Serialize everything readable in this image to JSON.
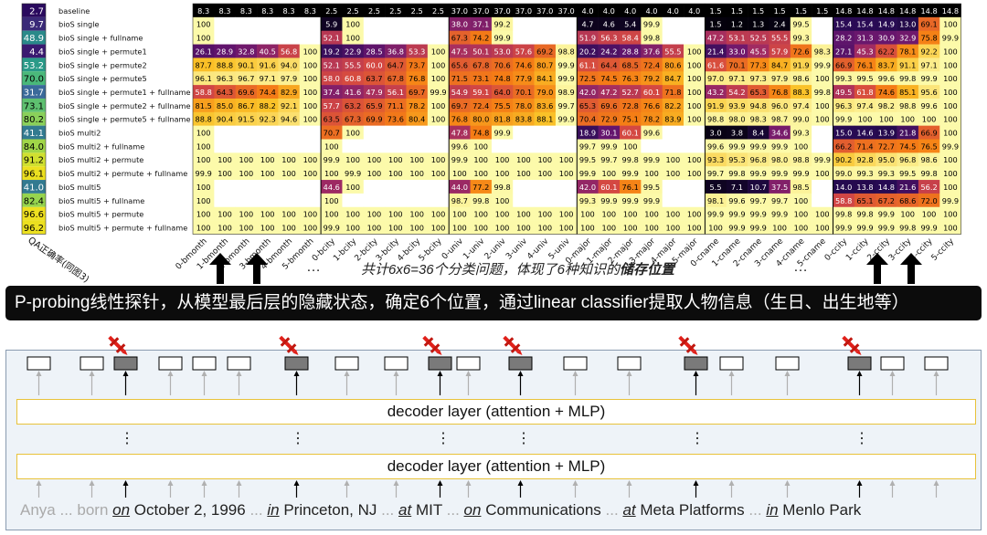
{
  "heatmap": {
    "y_axis_label": "QA正确率(同图3)",
    "rows": [
      {
        "label": "baseline",
        "qa": "2.7",
        "qa_color": "#2a0a5e"
      },
      {
        "label": "bioS single",
        "qa": "9.7",
        "qa_color": "#3a2a78"
      },
      {
        "label": "bioS single          + fullname",
        "qa": "48.9",
        "qa_color": "#2a8a8a"
      },
      {
        "label": "bioS single + permute1",
        "qa": "4.4",
        "qa_color": "#3a1a70"
      },
      {
        "label": "bioS single + permute2",
        "qa": "53.2",
        "qa_color": "#2a9a88"
      },
      {
        "label": "bioS single + permute5",
        "qa": "70.0",
        "qa_color": "#4ab87a"
      },
      {
        "label": "bioS single + permute1 + fullname",
        "qa": "31.7",
        "qa_color": "#3a6a9a"
      },
      {
        "label": "bioS single + permute2 + fullname",
        "qa": "73.1",
        "qa_color": "#5ec070"
      },
      {
        "label": "bioS single + permute5 + fullname",
        "qa": "80.2",
        "qa_color": "#8ad05a"
      },
      {
        "label": "bioS multi2",
        "qa": "41.1",
        "qa_color": "#327a90"
      },
      {
        "label": "bioS multi2          + fullname",
        "qa": "84.0",
        "qa_color": "#a0d648"
      },
      {
        "label": "bioS multi2 + permute",
        "qa": "91.2",
        "qa_color": "#d0e030"
      },
      {
        "label": "bioS multi2 + permute  + fullname",
        "qa": "96.1",
        "qa_color": "#ece020"
      },
      {
        "label": "bioS multi5",
        "qa": "41.0",
        "qa_color": "#327a90"
      },
      {
        "label": "bioS multi5          + fullname",
        "qa": "82.4",
        "qa_color": "#96d44e"
      },
      {
        "label": "bioS multi5 + permute",
        "qa": "96.6",
        "qa_color": "#eee020"
      },
      {
        "label": "bioS multi5 + permute  + fullname",
        "qa": "96.2",
        "qa_color": "#ece020"
      }
    ],
    "col_labels": [
      "0-bmonth",
      "1-bmonth",
      "2-bmonth",
      "3-bmonth",
      "4-bmonth",
      "5-bmonth",
      "0-bcity",
      "1-bcity",
      "2-bcity",
      "3-bcity",
      "4-bcity",
      "5-bcity",
      "0-univ",
      "1-univ",
      "2-univ",
      "3-univ",
      "4-univ",
      "5-univ",
      "0-major",
      "1-major",
      "2-major",
      "3-major",
      "4-major",
      "5-major",
      "0-cname",
      "1-cname",
      "2-cname",
      "3-cname",
      "4-cname",
      "5-cname",
      "0-ccity",
      "1-ccity",
      "2-ccity",
      "3-ccity",
      "4-ccity",
      "5-ccity"
    ],
    "values": [
      [
        "8.3",
        "8.3",
        "8.3",
        "8.3",
        "8.3",
        "8.3",
        "2.5",
        "2.5",
        "2.5",
        "2.5",
        "2.5",
        "2.5",
        "37.0",
        "37.0",
        "37.0",
        "37.0",
        "37.0",
        "37.0",
        "4.0",
        "4.0",
        "4.0",
        "4.0",
        "4.0",
        "4.0",
        "1.5",
        "1.5",
        "1.5",
        "1.5",
        "1.5",
        "1.5",
        "14.8",
        "14.8",
        "14.8",
        "14.8",
        "14.8",
        "14.8"
      ],
      [
        "100",
        "",
        "",
        "",
        "",
        "",
        "5.9",
        "100",
        "",
        "",
        "",
        "",
        "38.0",
        "37.1",
        "99.2",
        "",
        "",
        "",
        "4.7",
        "4.6",
        "5.4",
        "99.9",
        "",
        "",
        "1.5",
        "1.2",
        "1.3",
        "2.4",
        "99.5",
        "",
        "15.4",
        "15.4",
        "14.9",
        "13.0",
        "69.1",
        "100"
      ],
      [
        "100",
        "",
        "",
        "",
        "",
        "",
        "52.1",
        "100",
        "",
        "",
        "",
        "",
        "67.3",
        "74.2",
        "99.9",
        "",
        "",
        "",
        "51.9",
        "56.3",
        "58.4",
        "99.8",
        "",
        "",
        "47.2",
        "53.1",
        "52.5",
        "55.5",
        "99.3",
        "",
        "28.2",
        "31.3",
        "30.9",
        "32.9",
        "75.8",
        "99.9"
      ],
      [
        "26.1",
        "28.9",
        "32.8",
        "40.5",
        "56.8",
        "100",
        "19.2",
        "22.9",
        "28.5",
        "36.8",
        "53.3",
        "100",
        "47.5",
        "50.1",
        "53.0",
        "57.6",
        "69.2",
        "98.8",
        "20.2",
        "24.2",
        "28.8",
        "37.6",
        "55.5",
        "100",
        "21.4",
        "33.0",
        "45.5",
        "57.9",
        "72.6",
        "98.3",
        "27.1",
        "45.3",
        "62.2",
        "78.1",
        "92.2",
        "100"
      ],
      [
        "87.7",
        "88.8",
        "90.1",
        "91.6",
        "94.0",
        "100",
        "52.1",
        "55.5",
        "60.0",
        "64.7",
        "73.7",
        "100",
        "65.6",
        "67.8",
        "70.6",
        "74.6",
        "80.7",
        "99.9",
        "61.1",
        "64.4",
        "68.5",
        "72.4",
        "80.6",
        "100",
        "61.6",
        "70.1",
        "77.3",
        "84.7",
        "91.9",
        "99.9",
        "66.9",
        "76.1",
        "83.7",
        "91.1",
        "97.1",
        "100"
      ],
      [
        "96.1",
        "96.3",
        "96.7",
        "97.1",
        "97.9",
        "100",
        "58.0",
        "60.8",
        "63.7",
        "67.8",
        "76.8",
        "100",
        "71.5",
        "73.1",
        "74.8",
        "77.9",
        "84.1",
        "99.9",
        "72.5",
        "74.5",
        "76.3",
        "79.2",
        "84.7",
        "100",
        "97.0",
        "97.1",
        "97.3",
        "97.9",
        "98.6",
        "100",
        "99.3",
        "99.5",
        "99.6",
        "99.8",
        "99.9",
        "100"
      ],
      [
        "58.8",
        "64.3",
        "69.6",
        "74.4",
        "82.9",
        "100",
        "37.4",
        "41.6",
        "47.9",
        "56.1",
        "69.7",
        "99.9",
        "54.9",
        "59.1",
        "64.0",
        "70.1",
        "79.0",
        "98.9",
        "42.0",
        "47.2",
        "52.7",
        "60.1",
        "71.8",
        "100",
        "43.2",
        "54.2",
        "65.3",
        "76.8",
        "88.3",
        "99.8",
        "49.5",
        "61.8",
        "74.6",
        "85.1",
        "95.6",
        "100"
      ],
      [
        "81.5",
        "85.0",
        "86.7",
        "88.2",
        "92.1",
        "100",
        "57.7",
        "63.2",
        "65.9",
        "71.1",
        "78.2",
        "100",
        "69.7",
        "72.4",
        "75.5",
        "78.0",
        "83.6",
        "99.7",
        "65.3",
        "69.6",
        "72.8",
        "76.6",
        "82.2",
        "100",
        "91.9",
        "93.9",
        "94.8",
        "96.0",
        "97.4",
        "100",
        "96.3",
        "97.4",
        "98.2",
        "98.8",
        "99.6",
        "100"
      ],
      [
        "88.8",
        "90.4",
        "91.5",
        "92.3",
        "94.6",
        "100",
        "63.5",
        "67.3",
        "69.9",
        "73.6",
        "80.4",
        "100",
        "76.8",
        "80.0",
        "81.8",
        "83.8",
        "88.1",
        "99.9",
        "70.4",
        "72.9",
        "75.1",
        "78.2",
        "83.9",
        "100",
        "98.8",
        "98.0",
        "98.3",
        "98.7",
        "99.0",
        "100",
        "99.9",
        "100",
        "100",
        "100",
        "100",
        "100"
      ],
      [
        "100",
        "",
        "",
        "",
        "",
        "",
        "70.7",
        "100",
        "",
        "",
        "",
        "",
        "47.8",
        "74.8",
        "99.9",
        "",
        "",
        "",
        "18.9",
        "30.1",
        "60.1",
        "99.6",
        "",
        "",
        "3.0",
        "3.8",
        "8.4",
        "34.6",
        "99.3",
        "",
        "15.0",
        "14.6",
        "13.9",
        "21.8",
        "66.9",
        "100"
      ],
      [
        "100",
        "",
        "",
        "",
        "",
        "",
        "100",
        "",
        "",
        "",
        "",
        "",
        "99.6",
        "100",
        "",
        "",
        "",
        "",
        "99.7",
        "99.9",
        "100",
        "",
        "",
        "",
        "99.6",
        "99.9",
        "99.9",
        "99.9",
        "100",
        "",
        "66.2",
        "71.4",
        "72.7",
        "74.5",
        "76.5",
        "99.9"
      ],
      [
        "100",
        "100",
        "100",
        "100",
        "100",
        "100",
        "99.9",
        "100",
        "100",
        "100",
        "100",
        "100",
        "99.9",
        "100",
        "100",
        "100",
        "100",
        "100",
        "99.5",
        "99.7",
        "99.8",
        "99.9",
        "100",
        "100",
        "93.3",
        "95.3",
        "96.8",
        "98.0",
        "98.8",
        "99.9",
        "90.2",
        "92.8",
        "95.0",
        "96.8",
        "98.6",
        "100"
      ],
      [
        "99.9",
        "100",
        "100",
        "100",
        "100",
        "100",
        "100",
        "99.9",
        "100",
        "100",
        "100",
        "100",
        "100",
        "100",
        "100",
        "100",
        "100",
        "100",
        "99.9",
        "100",
        "99.9",
        "100",
        "100",
        "100",
        "99.7",
        "99.8",
        "99.9",
        "99.9",
        "99.9",
        "100",
        "99.0",
        "99.3",
        "99.3",
        "99.5",
        "99.8",
        "100"
      ],
      [
        "100",
        "",
        "",
        "",
        "",
        "",
        "44.6",
        "100",
        "",
        "",
        "",
        "",
        "44.0",
        "77.2",
        "99.8",
        "",
        "",
        "",
        "42.0",
        "60.1",
        "76.1",
        "99.5",
        "",
        "",
        "5.5",
        "7.1",
        "10.7",
        "37.5",
        "98.5",
        "",
        "14.0",
        "13.8",
        "14.8",
        "21.6",
        "56.2",
        "100"
      ],
      [
        "100",
        "",
        "",
        "",
        "",
        "",
        "100",
        "",
        "",
        "",
        "",
        "",
        "98.7",
        "99.8",
        "100",
        "",
        "",
        "",
        "99.3",
        "99.9",
        "99.9",
        "99.9",
        "",
        "",
        "98.1",
        "99.6",
        "99.7",
        "99.7",
        "100",
        "",
        "58.8",
        "65.1",
        "67.2",
        "68.6",
        "72.0",
        "99.9"
      ],
      [
        "100",
        "100",
        "100",
        "100",
        "100",
        "100",
        "100",
        "100",
        "100",
        "100",
        "100",
        "100",
        "100",
        "100",
        "100",
        "100",
        "100",
        "100",
        "100",
        "100",
        "100",
        "100",
        "100",
        "100",
        "99.9",
        "99.9",
        "99.9",
        "99.9",
        "100",
        "100",
        "99.8",
        "99.8",
        "99.9",
        "100",
        "100",
        "100"
      ],
      [
        "100",
        "100",
        "100",
        "100",
        "100",
        "100",
        "99.9",
        "100",
        "100",
        "100",
        "100",
        "100",
        "100",
        "100",
        "100",
        "100",
        "100",
        "100",
        "100",
        "100",
        "100",
        "100",
        "100",
        "100",
        "100",
        "99.9",
        "99.9",
        "100",
        "100",
        "100",
        "99.9",
        "99.9",
        "99.9",
        "99.8",
        "99.9",
        "100"
      ]
    ]
  },
  "caption": {
    "prefix": "共计6x6=36个分类问题，体现了6种知识的",
    "emphasis": "储存位置",
    "dots": "…"
  },
  "banner": {
    "text": "P-probing线性探针，从模型最后层的隐藏状态，确定6个位置，通过linear classifier提取人物信息（生日、出生地等）"
  },
  "model": {
    "layer_label": "decoder layer (attention + MLP)",
    "vdots": "⋮",
    "tokens": [
      {
        "text": "Anya",
        "style": "faded"
      },
      {
        "text": "... born",
        "style": "faded"
      },
      {
        "text": "on",
        "style": "kw"
      },
      {
        "text": "October 2, 1996",
        "style": "plain"
      },
      {
        "text": "...",
        "style": "faded"
      },
      {
        "text": "in",
        "style": "kw"
      },
      {
        "text": "Princeton, NJ",
        "style": "plain"
      },
      {
        "text": "...",
        "style": "faded"
      },
      {
        "text": "at",
        "style": "kw"
      },
      {
        "text": "MIT",
        "style": "plain"
      },
      {
        "text": "...",
        "style": "faded"
      },
      {
        "text": "on",
        "style": "kw"
      },
      {
        "text": "Communications",
        "style": "plain"
      },
      {
        "text": "...",
        "style": "faded"
      },
      {
        "text": "at",
        "style": "kw"
      },
      {
        "text": "Meta Platforms",
        "style": "plain"
      },
      {
        "text": "...",
        "style": "faded"
      },
      {
        "text": "in",
        "style": "kw"
      },
      {
        "text": "Menlo Park",
        "style": "plain"
      }
    ]
  }
}
